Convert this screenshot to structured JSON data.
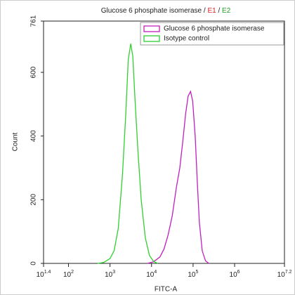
{
  "chart_data": {
    "type": "line",
    "title": [
      "Glucose 6 phosphate isomerase / ",
      "E1",
      " / ",
      "E2"
    ],
    "title_colors": [
      "#222222",
      "#d62020",
      "#222222",
      "#20a020"
    ],
    "x_label": "FITC-A",
    "y_label": "Count",
    "log_x": true,
    "xlim": [
      25.12,
      15848932
    ],
    "xticks": [
      {
        "value": 25.12,
        "label": "10^1.4"
      },
      {
        "value": 100,
        "label": "10^2"
      },
      {
        "value": 1000,
        "label": "10^3"
      },
      {
        "value": 10000,
        "label": "10^4"
      },
      {
        "value": 100000,
        "label": "10^5"
      },
      {
        "value": 1000000,
        "label": "10^6"
      },
      {
        "value": 15848932,
        "label": "10^7.2"
      }
    ],
    "ylim": [
      0,
      761
    ],
    "yticks": [
      0,
      200,
      400,
      600,
      761
    ],
    "legend": "upper right",
    "series": [
      {
        "name": "Glucose 6 phosphate isomerase",
        "color": "#c020c0",
        "x": [
          7943,
          11220,
          15849,
          19953,
          25119,
          31623,
          39811,
          47863,
          56234,
          66069,
          75858,
          87096,
          97724,
          112202,
          125893,
          141254,
          165959,
          199526,
          239883
        ],
        "values": [
          0,
          5,
          20,
          45,
          90,
          150,
          240,
          300,
          380,
          470,
          525,
          540,
          510,
          400,
          260,
          130,
          40,
          8,
          0
        ]
      },
      {
        "name": "Isotype control",
        "color": "#30d030",
        "x": [
          501,
          708,
          1000,
          1259,
          1585,
          1995,
          2399,
          2754,
          3162,
          3548,
          3981,
          4677,
          5623,
          7079,
          8913,
          11220,
          14125
        ],
        "values": [
          0,
          3,
          15,
          40,
          110,
          280,
          470,
          640,
          690,
          650,
          520,
          360,
          200,
          80,
          25,
          6,
          0
        ]
      }
    ]
  }
}
